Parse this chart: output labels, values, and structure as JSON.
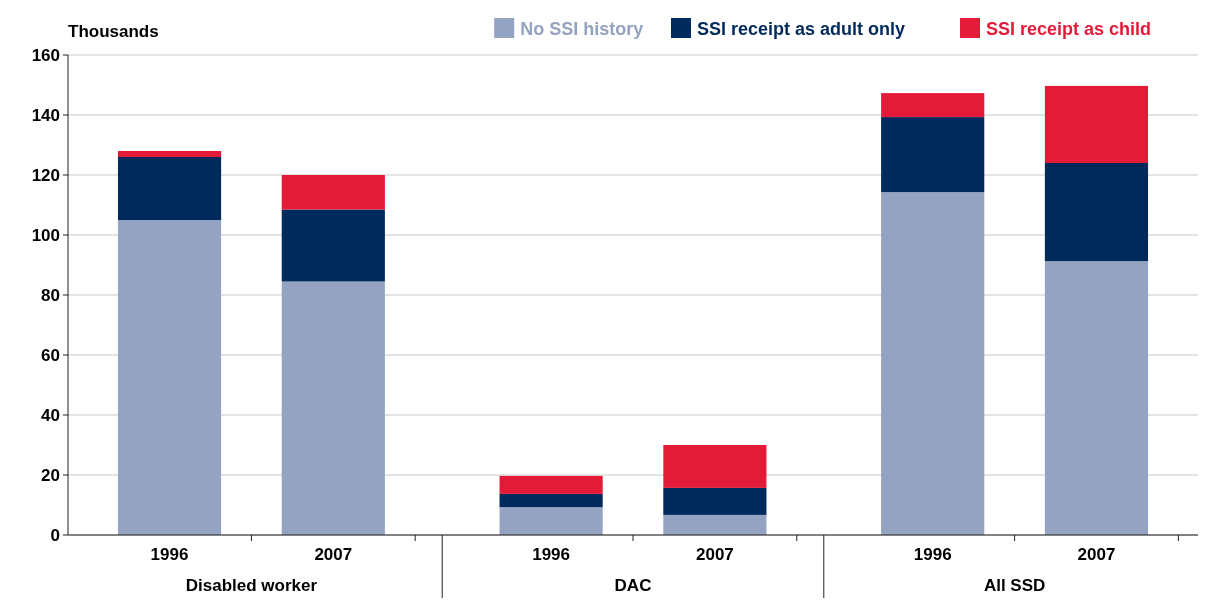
{
  "chart_data": {
    "type": "bar",
    "stacked": true,
    "ylabel": "Thousands",
    "categories": [
      "1996",
      "2007",
      "1996",
      "2007",
      "1996",
      "2007"
    ],
    "annotations": [
      "Disabled worker",
      "DAC",
      "All SSD"
    ],
    "series": [
      {
        "name": "No SSI history",
        "color": "#94a3c2",
        "values": [
          105,
          84.5,
          9.3,
          6.7,
          114.3,
          91.3
        ]
      },
      {
        "name": "SSI receipt as adult only",
        "color": "#002a5c",
        "values": [
          21,
          24,
          4.4,
          9,
          25,
          32.7
        ]
      },
      {
        "name": "SSI receipt as child",
        "color": "#e31b38",
        "values": [
          2,
          11.5,
          6,
          14.3,
          8,
          25.7
        ]
      }
    ],
    "ylim": [
      0,
      160
    ],
    "yticks": [
      0,
      20,
      40,
      60,
      80,
      100,
      120,
      140,
      160
    ],
    "grid": "y",
    "legend": "top right"
  }
}
